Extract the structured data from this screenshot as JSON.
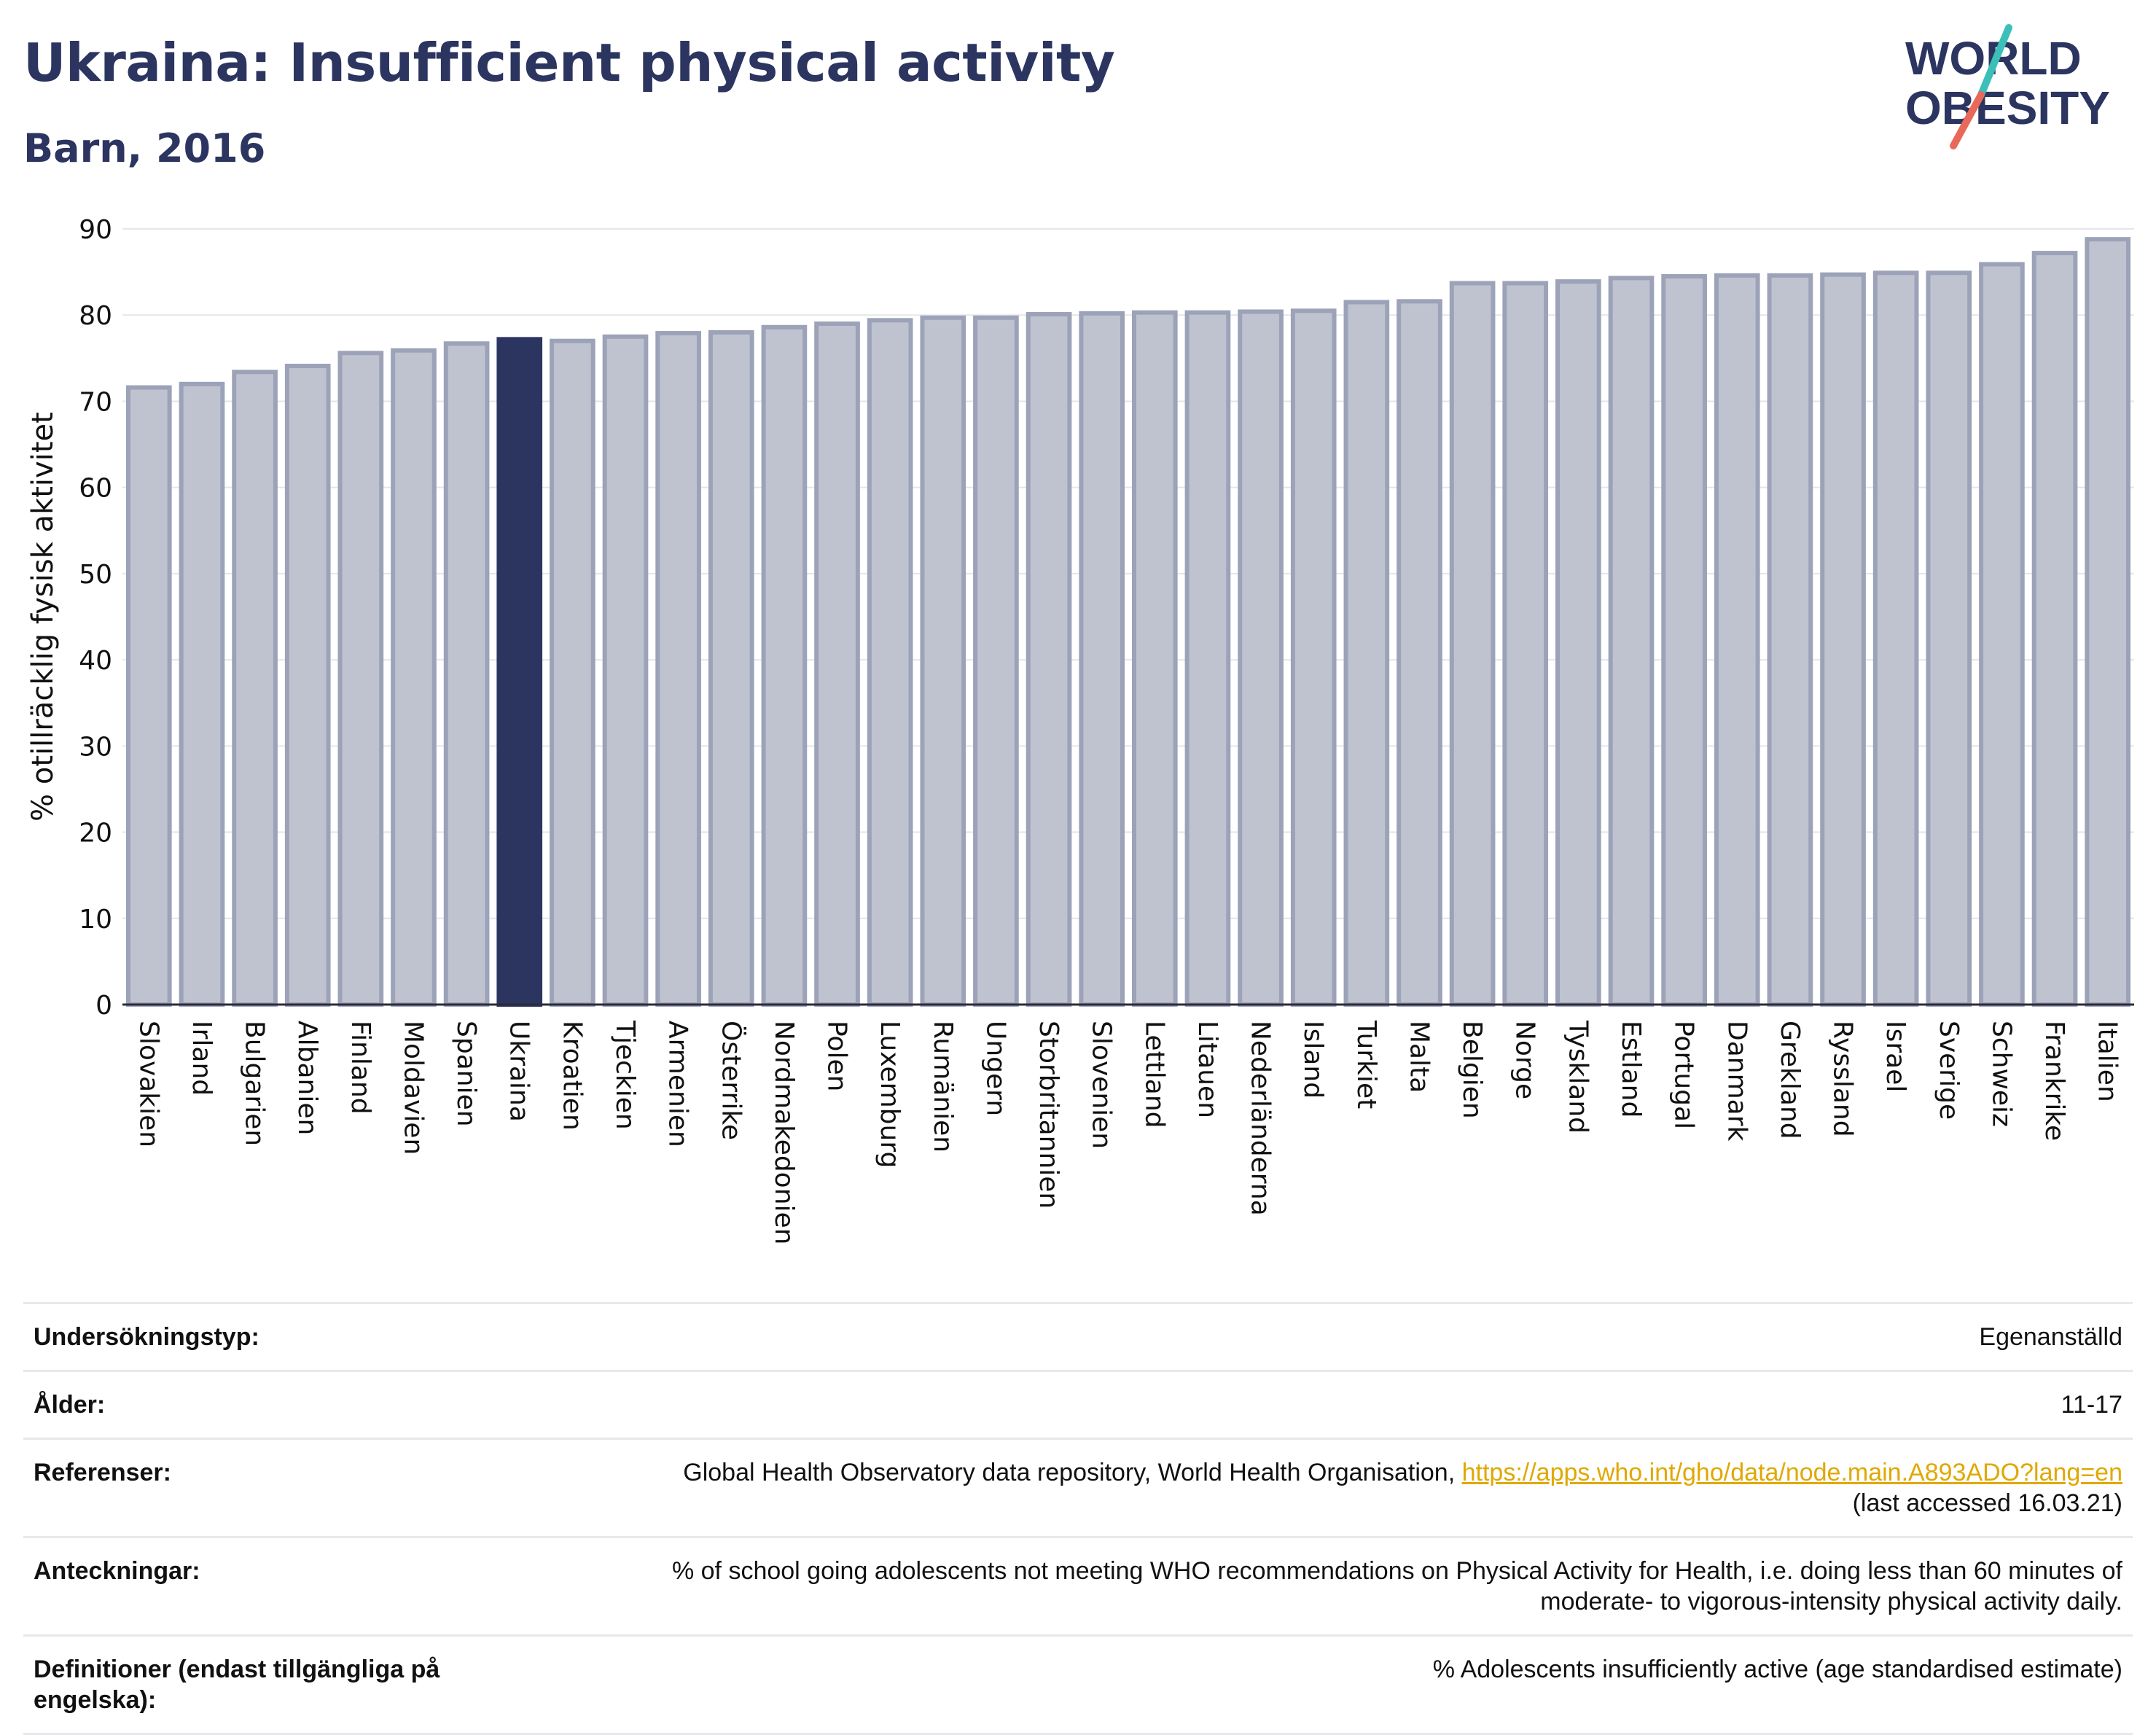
{
  "header": {
    "title": "Ukraina: Insufficient physical activity",
    "subtitle": "Barn, 2016"
  },
  "logo": {
    "line1": "WORLD",
    "line2": "OBESITY"
  },
  "colors": {
    "bar": "#bfc3d0",
    "bar_edge": "#9ca2b8",
    "highlight": "#2b3560",
    "title": "#2b3560",
    "link": "#e0a800"
  },
  "chart_data": {
    "type": "bar",
    "ylabel": "% otillräcklig fysisk aktivitet",
    "ylim": [
      0,
      90
    ],
    "yticks": [
      0,
      10,
      20,
      30,
      40,
      50,
      60,
      70,
      80,
      90
    ],
    "grid": true,
    "highlight": "Ukraina",
    "categories": [
      "Slovakien",
      "Irland",
      "Bulgarien",
      "Albanien",
      "Finland",
      "Moldavien",
      "Spanien",
      "Ukraina",
      "Kroatien",
      "Tjeckien",
      "Armenien",
      "Österrike",
      "Nordmakedonien",
      "Polen",
      "Luxemburg",
      "Rumänien",
      "Ungern",
      "Storbritannien",
      "Slovenien",
      "Lettland",
      "Litauen",
      "Nederländerna",
      "Island",
      "Turkiet",
      "Malta",
      "Belgien",
      "Norge",
      "Tyskland",
      "Estland",
      "Portugal",
      "Danmark",
      "Grekland",
      "Ryssland",
      "Israel",
      "Sverige",
      "Schweiz",
      "Frankrike",
      "Italien"
    ],
    "values": [
      71.6,
      72.0,
      73.4,
      74.1,
      75.6,
      75.9,
      76.7,
      77.2,
      77.0,
      77.5,
      77.9,
      78.0,
      78.6,
      79.0,
      79.4,
      79.7,
      79.7,
      80.1,
      80.2,
      80.3,
      80.3,
      80.4,
      80.5,
      81.5,
      81.6,
      83.7,
      83.7,
      83.9,
      84.3,
      84.5,
      84.6,
      84.6,
      84.7,
      84.9,
      84.9,
      85.9,
      87.2,
      88.8
    ]
  },
  "info": {
    "survey_label": "Undersökningstyp:",
    "survey_value": "Egenanställd",
    "age_label": "Ålder:",
    "age_value": "11-17",
    "ref_label": "Referenser:",
    "ref_text": "Global Health Observatory data repository, World Health Organisation, ",
    "ref_link": "https://apps.who.int/gho/data/node.main.A893ADO?lang=en",
    "ref_accessed": "(last accessed 16.03.21)",
    "notes_label": "Anteckningar:",
    "notes_line1": "% of school going adolescents not meeting WHO recommendations on Physical Activity for Health, i.e. doing less than 60 minutes of",
    "notes_line2": "moderate- to vigorous-intensity physical activity daily.",
    "def_label": "Definitioner (endast tillgängliga på engelska):",
    "def_value": "% Adolescents insufficiently active (age standardised estimate)"
  }
}
